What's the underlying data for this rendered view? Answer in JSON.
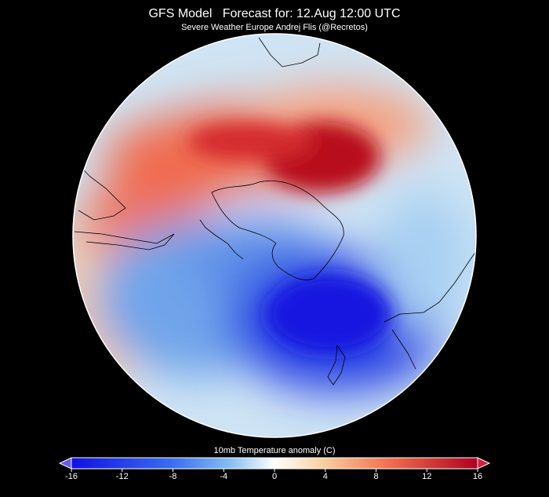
{
  "header": {
    "title": "GFS Model   Forecast for: 12.Aug 12:00 UTC",
    "subtitle": "Severe Weather Europe Andrej Flis (@Recretos)"
  },
  "colorbar": {
    "label": "10mb Temperature anomaly (C)",
    "lim": [
      -16,
      16
    ],
    "ticks": [
      -16,
      -12,
      -8,
      -4,
      0,
      4,
      8,
      12,
      16
    ]
  }
}
